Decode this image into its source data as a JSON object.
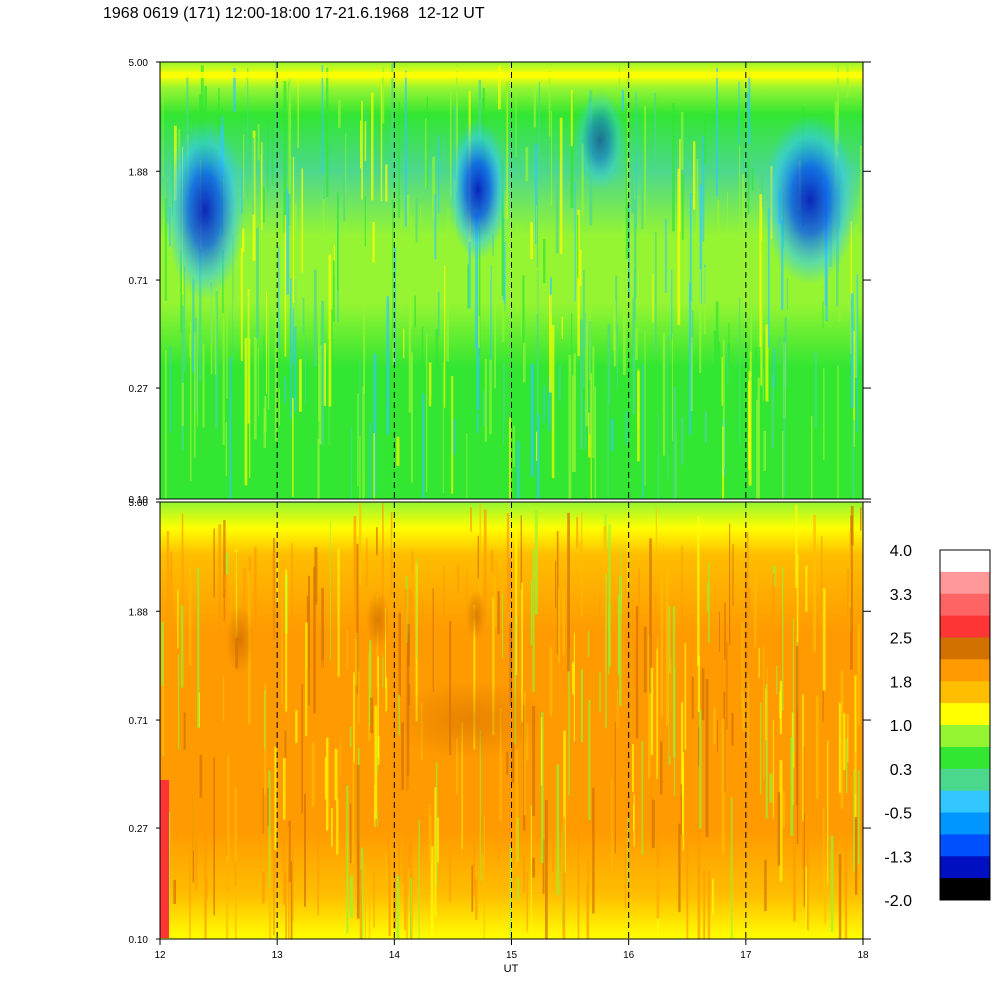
{
  "title": "1968 0619 (171) 12:00-18:00 17-21.6.1968  12-12 UT",
  "chart_data": {
    "type": "heatmap",
    "xlabel": "UT",
    "xlim": [
      12,
      18
    ],
    "x_ticks": [
      "12",
      "13",
      "14",
      "15",
      "16",
      "17",
      "18"
    ],
    "dashed_lines_at": [
      13,
      14,
      15,
      16,
      17
    ],
    "ylim": [
      0.1,
      5.0
    ],
    "y_scale": "log",
    "y_ticks": [
      "0.10",
      "0.27",
      "0.71",
      "1.88",
      "5.00"
    ],
    "panels": [
      {
        "position": "top",
        "dominant_level": "0.3 to 1.0",
        "notes": "blue patches (-1.3 to -0.5) near 12-12.7, 14.6-15.1, 17.2-17.9 at upper frequencies; yellow band near 5.00"
      },
      {
        "position": "bottom",
        "dominant_level": "1.0 to 2.5",
        "notes": "orange/dark-orange throughout, yellow-green near 5.00, red streak at 12 near bottom"
      }
    ],
    "colorbar": {
      "labels": [
        "4.0",
        "3.3",
        "2.5",
        "1.8",
        "1.0",
        "0.3",
        "-0.5",
        "-1.3",
        "-2.0"
      ],
      "colors": [
        "#ffffff",
        "#ff9898",
        "#ff6464",
        "#ff3434",
        "#d27000",
        "#ff9a00",
        "#ffbe00",
        "#ffff00",
        "#96f532",
        "#32e632",
        "#4cd88c",
        "#32c8ff",
        "#0096ff",
        "#0050ff",
        "#0010c0",
        "#000000"
      ],
      "top_color_index_for_panel": "color index 0 = top (white)"
    }
  }
}
